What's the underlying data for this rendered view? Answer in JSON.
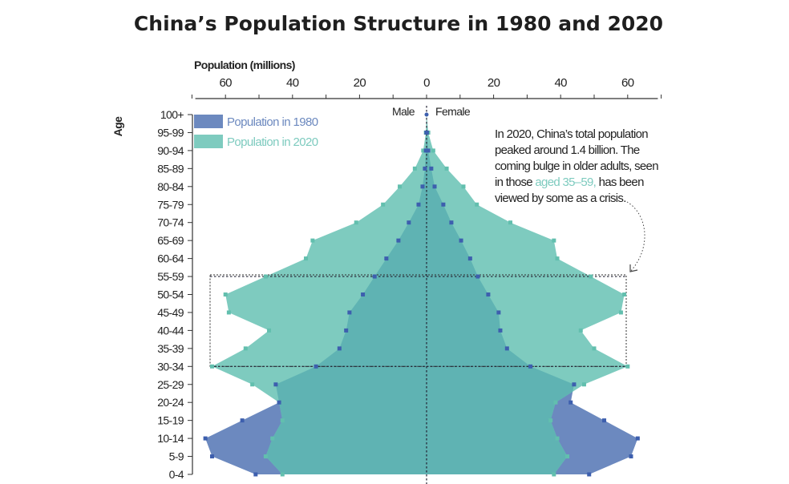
{
  "chart_data": {
    "type": "population-pyramid (area)",
    "title": "China’s Population Structure in 1980 and 2020",
    "xlabel": "Population (millions)",
    "ylabel": "Age",
    "side_labels": {
      "left": "Male",
      "right": "Female"
    },
    "xlim": [
      -70,
      70
    ],
    "x_ticks": [
      60,
      40,
      20,
      0,
      20,
      40,
      60
    ],
    "categories": [
      "0-4",
      "5-9",
      "10-14",
      "15-19",
      "20-24",
      "25-29",
      "30-34",
      "35-39",
      "40-44",
      "45-49",
      "50-54",
      "55-59",
      "60-64",
      "65-69",
      "70-74",
      "75-79",
      "80-84",
      "85-89",
      "90-94",
      "95-99",
      "100+"
    ],
    "series": [
      {
        "name": "Population in 1980",
        "color": "#6c89bf",
        "marker_color": "#3d5fae",
        "male": [
          51,
          64,
          66,
          55,
          44,
          45,
          33,
          26,
          24,
          23,
          19,
          15.5,
          12,
          8.4,
          5.3,
          2.4,
          1.2,
          0.5,
          0.2,
          0.05,
          0
        ],
        "female": [
          48.5,
          61,
          63,
          53,
          43,
          44,
          31,
          24,
          22,
          21.5,
          18.4,
          15.3,
          13,
          10.3,
          7.4,
          5,
          2.4,
          1.4,
          0.5,
          0.1,
          0
        ]
      },
      {
        "name": "Population in 2020",
        "color": "#7ecbbf",
        "marker_color": "#62bfae",
        "male": [
          43,
          48,
          46,
          43,
          44,
          52,
          64,
          54,
          47,
          59,
          60,
          48,
          36,
          34,
          21,
          13,
          8,
          3.5,
          1,
          0.2,
          0
        ],
        "female": [
          38,
          42,
          39,
          37,
          38.5,
          47,
          60,
          50,
          46,
          58,
          59,
          49,
          39,
          38,
          25,
          15,
          11,
          6,
          2,
          0.5,
          0
        ]
      }
    ],
    "overlap_color": "#5fb3b3",
    "highlight_range": [
      "30-34",
      "55-59"
    ],
    "legend_placement": "top-left",
    "grid": false,
    "annotation": {
      "parts": [
        "In 2020, China’s total population",
        "peaked around 1.4 billion. The",
        "coming bulge in older adults, seen",
        "in those ",
        "aged 35–59,",
        " has been",
        "viewed by some as a crisis."
      ],
      "highlight_color": "#7ecbbf"
    }
  }
}
